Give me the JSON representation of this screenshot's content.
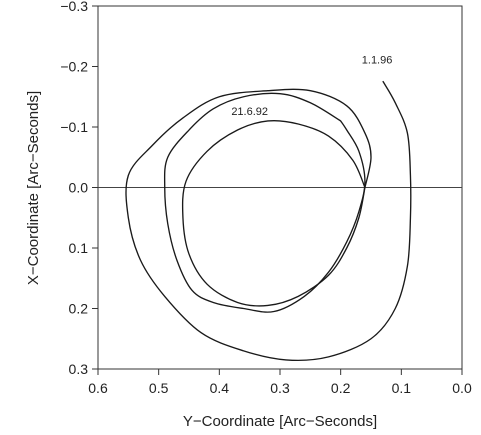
{
  "chart_data": {
    "type": "line",
    "title": "",
    "xlabel": "Y−Coordinate   [Arc−Seconds]",
    "ylabel": "X−Coordinate   [Arc−Seconds]",
    "xlim": [
      0.6,
      0.0
    ],
    "ylim": [
      0.3,
      -0.3
    ],
    "x_ticks": [
      "0.6",
      "0.5",
      "0.4",
      "0.3",
      "0.2",
      "0.1",
      "0.0"
    ],
    "y_ticks": [
      "−0.3",
      "−0.2",
      "−0.1",
      "0.0",
      "0.1",
      "0.2",
      "0.3"
    ],
    "grid": false,
    "reference_line": {
      "y": 0.0
    },
    "annotations": [
      {
        "text": "1.1.96",
        "x": 0.14,
        "y": -0.205
      },
      {
        "text": "21.6.92",
        "x": 0.35,
        "y": -0.12
      }
    ],
    "series": [
      {
        "points": [
          [
            0.16,
            0.0
          ],
          [
            0.15,
            -0.05
          ],
          [
            0.16,
            -0.09
          ],
          [
            0.19,
            -0.135
          ],
          [
            0.25,
            -0.16
          ],
          [
            0.32,
            -0.16
          ],
          [
            0.4,
            -0.15
          ],
          [
            0.46,
            -0.115
          ],
          [
            0.51,
            -0.07
          ],
          [
            0.55,
            -0.02
          ],
          [
            0.55,
            0.05
          ],
          [
            0.53,
            0.12
          ],
          [
            0.49,
            0.18
          ],
          [
            0.43,
            0.24
          ],
          [
            0.36,
            0.27
          ],
          [
            0.29,
            0.285
          ],
          [
            0.22,
            0.28
          ],
          [
            0.15,
            0.25
          ],
          [
            0.11,
            0.2
          ],
          [
            0.09,
            0.13
          ],
          [
            0.085,
            0.05
          ],
          [
            0.085,
            -0.02
          ],
          [
            0.09,
            -0.09
          ],
          [
            0.11,
            -0.14
          ],
          [
            0.13,
            -0.175
          ]
        ]
      },
      {
        "points": [
          [
            0.2,
            -0.11
          ],
          [
            0.25,
            -0.14
          ],
          [
            0.3,
            -0.155
          ],
          [
            0.36,
            -0.15
          ],
          [
            0.41,
            -0.13
          ],
          [
            0.45,
            -0.095
          ],
          [
            0.485,
            -0.05
          ],
          [
            0.49,
            0.0
          ],
          [
            0.485,
            0.06
          ],
          [
            0.47,
            0.12
          ],
          [
            0.445,
            0.17
          ],
          [
            0.41,
            0.19
          ],
          [
            0.36,
            0.2
          ],
          [
            0.31,
            0.205
          ],
          [
            0.26,
            0.18
          ],
          [
            0.22,
            0.14
          ],
          [
            0.19,
            0.09
          ],
          [
            0.17,
            0.04
          ],
          [
            0.16,
            -0.01
          ],
          [
            0.17,
            -0.06
          ],
          [
            0.19,
            -0.095
          ],
          [
            0.2,
            -0.11
          ]
        ]
      },
      {
        "points": [
          [
            0.16,
            0.0
          ],
          [
            0.18,
            -0.045
          ],
          [
            0.22,
            -0.085
          ],
          [
            0.27,
            -0.105
          ],
          [
            0.32,
            -0.11
          ],
          [
            0.37,
            -0.095
          ],
          [
            0.42,
            -0.06
          ],
          [
            0.455,
            -0.01
          ],
          [
            0.46,
            0.05
          ],
          [
            0.45,
            0.11
          ],
          [
            0.42,
            0.16
          ],
          [
            0.37,
            0.19
          ],
          [
            0.32,
            0.195
          ],
          [
            0.27,
            0.18
          ],
          [
            0.22,
            0.145
          ],
          [
            0.19,
            0.1
          ],
          [
            0.17,
            0.05
          ],
          [
            0.16,
            0.0
          ]
        ]
      }
    ]
  }
}
